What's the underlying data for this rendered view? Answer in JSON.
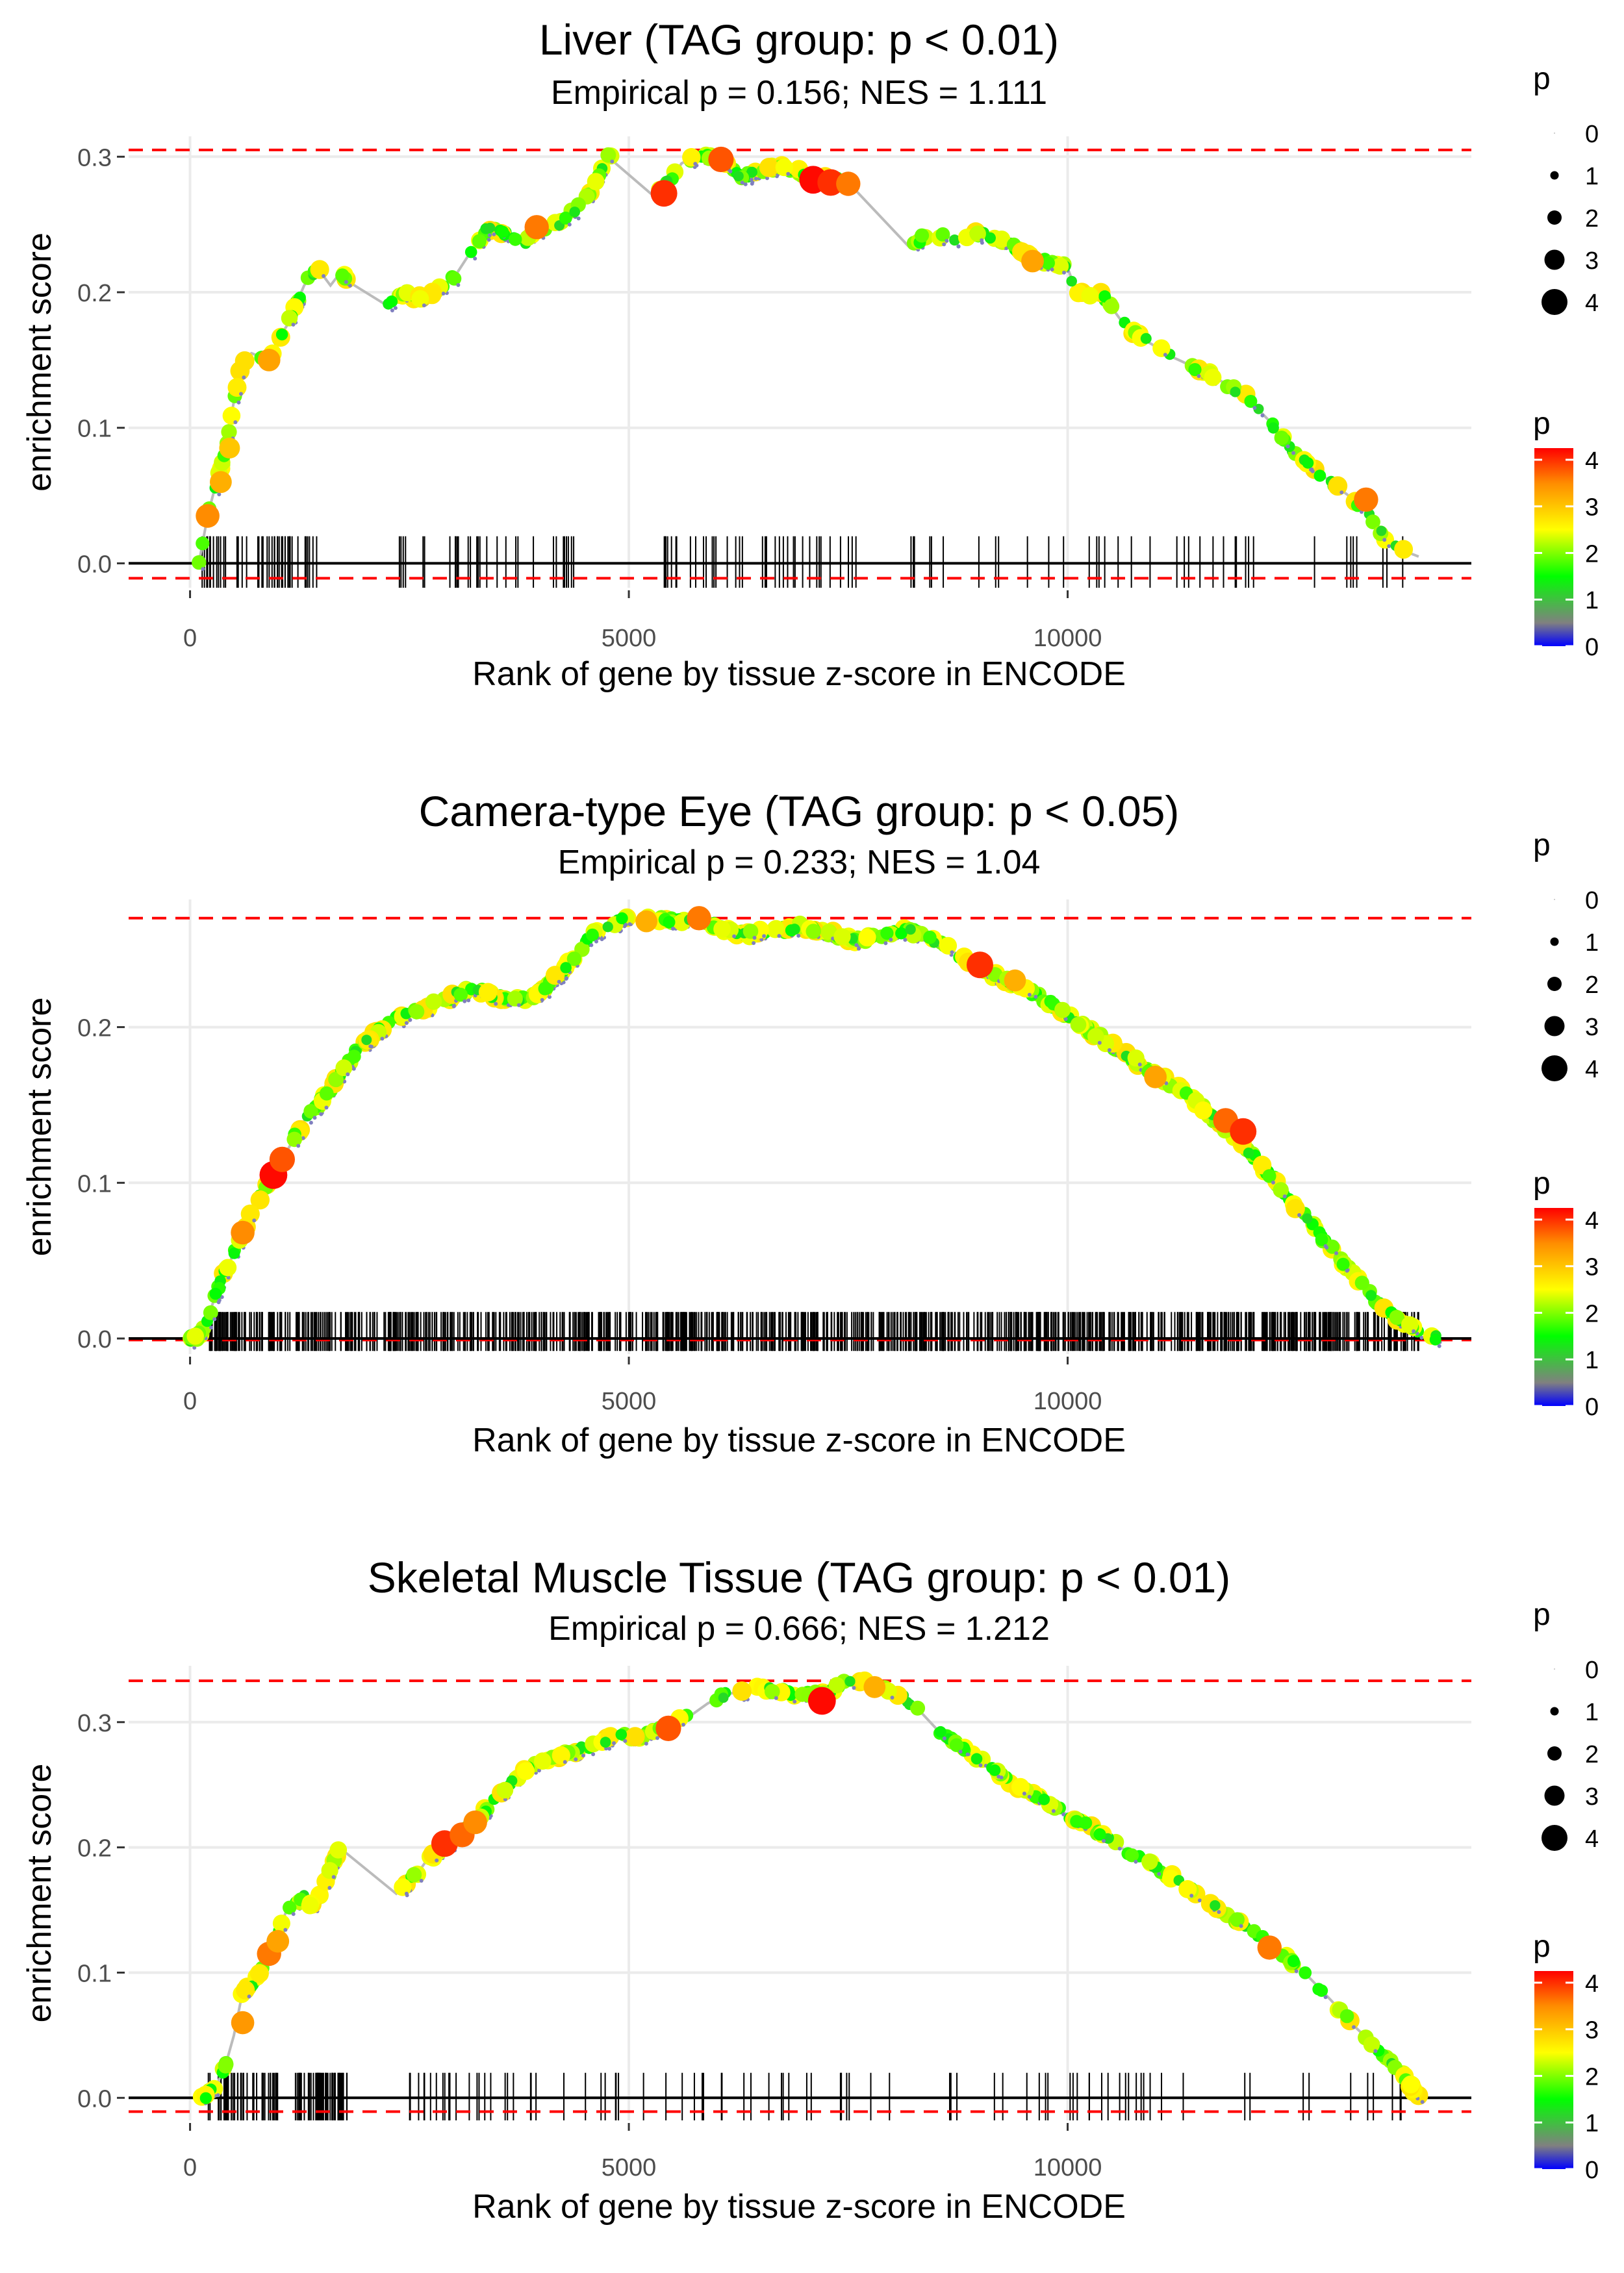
{
  "figure": {
    "legend_size_title": "p",
    "legend_color_title": "p",
    "size_legend_values": [
      "0",
      "1",
      "2",
      "3",
      "4"
    ],
    "color_legend_ticks": [
      "4",
      "3",
      "2",
      "1",
      "0"
    ],
    "colorscale": {
      "domain": [
        0,
        0.5,
        1.5,
        2.5,
        3.5,
        4.25
      ],
      "colors": [
        "#0000ff",
        "#808080",
        "#00ff00",
        "#ffff00",
        "#ff8c00",
        "#ff0000"
      ]
    },
    "colors": {
      "curve": "#bbbbbb",
      "threshold": "#ff0000",
      "zero_line": "#000000",
      "grid": "#ebebeb",
      "rug": "#000000",
      "tick_text": "#4d4d4d"
    }
  },
  "chart_data": [
    {
      "type": "scatter",
      "title": "Liver (TAG group: p < 0.01)",
      "subtitle": "Empirical p = 0.156; NES = 1.111",
      "xlabel": "Rank of gene by tissue z-score in ENCODE",
      "ylabel": "enrichment score",
      "xlim": [
        -700,
        14600
      ],
      "ylim": [
        -0.018,
        0.315
      ],
      "x_ticks": [
        0,
        5000,
        10000
      ],
      "x_tick_labels": [
        "0",
        "5000",
        "10000"
      ],
      "y_ticks": [
        0.0,
        0.1,
        0.2,
        0.3
      ],
      "y_tick_labels": [
        "0.0",
        "0.1",
        "0.2",
        "0.3"
      ],
      "thresholds": [
        0.305,
        -0.011
      ],
      "x_end": 14000,
      "n_rug": 150,
      "rug_top": 0.02,
      "rug_bottom": -0.018,
      "curve": [
        [
          100,
          0
        ],
        [
          200,
          0.035
        ],
        [
          300,
          0.06
        ],
        [
          400,
          0.08
        ],
        [
          500,
          0.12
        ],
        [
          600,
          0.15
        ],
        [
          700,
          0.155
        ],
        [
          900,
          0.15
        ],
        [
          1000,
          0.165
        ],
        [
          1100,
          0.175
        ],
        [
          1200,
          0.19
        ],
        [
          1300,
          0.205
        ],
        [
          1450,
          0.218
        ],
        [
          1600,
          0.205
        ],
        [
          1720,
          0.215
        ],
        [
          1800,
          0.208
        ],
        [
          2250,
          0.19
        ],
        [
          2300,
          0.195
        ],
        [
          2400,
          0.2
        ],
        [
          2600,
          0.196
        ],
        [
          2800,
          0.2
        ],
        [
          3000,
          0.21
        ],
        [
          3200,
          0.23
        ],
        [
          3400,
          0.248
        ],
        [
          3600,
          0.243
        ],
        [
          3800,
          0.235
        ],
        [
          4000,
          0.248
        ],
        [
          4200,
          0.25
        ],
        [
          4400,
          0.262
        ],
        [
          4600,
          0.278
        ],
        [
          4750,
          0.302
        ],
        [
          4850,
          0.295
        ],
        [
          5300,
          0.27
        ],
        [
          5400,
          0.278
        ],
        [
          5500,
          0.285
        ],
        [
          5600,
          0.295
        ],
        [
          5800,
          0.302
        ],
        [
          6000,
          0.3
        ],
        [
          6100,
          0.295
        ],
        [
          6300,
          0.285
        ],
        [
          6500,
          0.29
        ],
        [
          6700,
          0.292
        ],
        [
          6900,
          0.29
        ],
        [
          7100,
          0.285
        ],
        [
          7300,
          0.283
        ],
        [
          7500,
          0.281
        ],
        [
          8200,
          0.233
        ],
        [
          8400,
          0.243
        ],
        [
          8700,
          0.24
        ],
        [
          9000,
          0.243
        ],
        [
          9300,
          0.238
        ],
        [
          9600,
          0.225
        ],
        [
          10000,
          0.218
        ],
        [
          10100,
          0.2
        ],
        [
          10400,
          0.198
        ],
        [
          10600,
          0.18
        ],
        [
          10800,
          0.168
        ],
        [
          11200,
          0.152
        ],
        [
          11600,
          0.14
        ],
        [
          12000,
          0.125
        ],
        [
          12300,
          0.105
        ],
        [
          12600,
          0.08
        ],
        [
          13000,
          0.06
        ],
        [
          13400,
          0.04
        ],
        [
          13600,
          0.02
        ],
        [
          13800,
          0.01
        ],
        [
          14000,
          0.005
        ]
      ],
      "highlights": [
        [
          200,
          0.035,
          3.5
        ],
        [
          350,
          0.06,
          3.2
        ],
        [
          450,
          0.085,
          3
        ],
        [
          900,
          0.15,
          3.3
        ],
        [
          3950,
          0.248,
          3.6
        ],
        [
          5400,
          0.273,
          4.0
        ],
        [
          6050,
          0.298,
          3.8
        ],
        [
          7100,
          0.283,
          4.2
        ],
        [
          7300,
          0.281,
          4.0
        ],
        [
          7500,
          0.28,
          3.6
        ],
        [
          9600,
          0.223,
          3.3
        ],
        [
          13400,
          0.047,
          3.6
        ]
      ]
    },
    {
      "type": "scatter",
      "title": "Camera-type Eye (TAG group: p < 0.05)",
      "subtitle": "Empirical p = 0.233; NES = 1.04",
      "xlabel": "Rank of gene by tissue z-score in ENCODE",
      "ylabel": "enrichment score",
      "xlim": [
        -700,
        14600
      ],
      "ylim": [
        -0.01,
        0.282
      ],
      "x_ticks": [
        0,
        5000,
        10000
      ],
      "x_tick_labels": [
        "0",
        "5000",
        "10000"
      ],
      "y_ticks": [
        0.0,
        0.1,
        0.2
      ],
      "y_tick_labels": [
        "0.0",
        "0.1",
        "0.2"
      ],
      "thresholds": [
        0.27,
        -0.001
      ],
      "x_end": 14000,
      "n_rug": 900,
      "rug_top": 0.017,
      "rug_bottom": -0.008,
      "curve": [
        [
          0,
          0.0
        ],
        [
          100,
          0.002
        ],
        [
          200,
          0.012
        ],
        [
          300,
          0.03
        ],
        [
          500,
          0.055
        ],
        [
          700,
          0.08
        ],
        [
          900,
          0.1
        ],
        [
          1100,
          0.12
        ],
        [
          1300,
          0.14
        ],
        [
          1600,
          0.16
        ],
        [
          1900,
          0.185
        ],
        [
          2200,
          0.2
        ],
        [
          2500,
          0.21
        ],
        [
          2800,
          0.215
        ],
        [
          3000,
          0.22
        ],
        [
          3200,
          0.225
        ],
        [
          3500,
          0.22
        ],
        [
          3800,
          0.218
        ],
        [
          4000,
          0.222
        ],
        [
          4300,
          0.24
        ],
        [
          4600,
          0.26
        ],
        [
          4900,
          0.268
        ],
        [
          5200,
          0.27
        ],
        [
          5500,
          0.268
        ],
        [
          5800,
          0.27
        ],
        [
          6100,
          0.262
        ],
        [
          6400,
          0.26
        ],
        [
          6700,
          0.262
        ],
        [
          7000,
          0.265
        ],
        [
          7300,
          0.26
        ],
        [
          7600,
          0.255
        ],
        [
          7900,
          0.26
        ],
        [
          8200,
          0.262
        ],
        [
          8500,
          0.255
        ],
        [
          8800,
          0.245
        ],
        [
          9100,
          0.235
        ],
        [
          9400,
          0.228
        ],
        [
          9800,
          0.215
        ],
        [
          10200,
          0.2
        ],
        [
          10600,
          0.185
        ],
        [
          11000,
          0.17
        ],
        [
          11400,
          0.155
        ],
        [
          11700,
          0.14
        ],
        [
          12000,
          0.125
        ],
        [
          12300,
          0.105
        ],
        [
          12600,
          0.085
        ],
        [
          12900,
          0.065
        ],
        [
          13200,
          0.045
        ],
        [
          13500,
          0.025
        ],
        [
          13800,
          0.01
        ],
        [
          14000,
          0.004
        ],
        [
          14200,
          0.0
        ]
      ],
      "highlights": [
        [
          950,
          0.105,
          4.2
        ],
        [
          1050,
          0.115,
          3.8
        ],
        [
          600,
          0.068,
          3.5
        ],
        [
          9000,
          0.24,
          4.0
        ],
        [
          9400,
          0.23,
          3.2
        ],
        [
          11000,
          0.168,
          3.3
        ],
        [
          11800,
          0.14,
          3.7
        ],
        [
          12000,
          0.133,
          4.0
        ],
        [
          5800,
          0.27,
          3.6
        ],
        [
          5200,
          0.268,
          3.2
        ]
      ]
    },
    {
      "type": "scatter",
      "title": "Skeletal Muscle Tissue (TAG group: p < 0.01)",
      "subtitle": "Empirical p = 0.666; NES = 1.212",
      "xlabel": "Rank of gene by tissue z-score in ENCODE",
      "ylabel": "enrichment score",
      "xlim": [
        -700,
        14600
      ],
      "ylim": [
        -0.018,
        0.345
      ],
      "x_ticks": [
        0,
        5000,
        10000
      ],
      "x_tick_labels": [
        "0",
        "5000",
        "10000"
      ],
      "y_ticks": [
        0.0,
        0.1,
        0.2,
        0.3
      ],
      "y_tick_labels": [
        "0.0",
        "0.1",
        "0.2",
        "0.3"
      ],
      "thresholds": [
        0.333,
        -0.011
      ],
      "x_end": 14000,
      "n_rug": 180,
      "rug_top": 0.02,
      "rug_bottom": -0.018,
      "curve": [
        [
          100,
          0
        ],
        [
          200,
          0.002
        ],
        [
          300,
          0.01
        ],
        [
          400,
          0.025
        ],
        [
          500,
          0.05
        ],
        [
          600,
          0.085
        ],
        [
          700,
          0.09
        ],
        [
          800,
          0.1
        ],
        [
          900,
          0.115
        ],
        [
          1000,
          0.13
        ],
        [
          1100,
          0.15
        ],
        [
          1200,
          0.155
        ],
        [
          1300,
          0.16
        ],
        [
          1400,
          0.152
        ],
        [
          1500,
          0.165
        ],
        [
          1700,
          0.2
        ],
        [
          2350,
          0.163
        ],
        [
          2450,
          0.17
        ],
        [
          2600,
          0.18
        ],
        [
          2700,
          0.19
        ],
        [
          2900,
          0.2
        ],
        [
          3100,
          0.21
        ],
        [
          3300,
          0.225
        ],
        [
          3500,
          0.24
        ],
        [
          3700,
          0.255
        ],
        [
          3900,
          0.265
        ],
        [
          4100,
          0.272
        ],
        [
          4300,
          0.275
        ],
        [
          4500,
          0.28
        ],
        [
          4700,
          0.285
        ],
        [
          4900,
          0.29
        ],
        [
          5100,
          0.288
        ],
        [
          5300,
          0.295
        ],
        [
          5500,
          0.3
        ],
        [
          5700,
          0.305
        ],
        [
          5900,
          0.315
        ],
        [
          6100,
          0.322
        ],
        [
          6300,
          0.325
        ],
        [
          6500,
          0.327
        ],
        [
          6700,
          0.325
        ],
        [
          6900,
          0.322
        ],
        [
          7100,
          0.322
        ],
        [
          7300,
          0.325
        ],
        [
          7500,
          0.333
        ],
        [
          7700,
          0.332
        ],
        [
          7900,
          0.327
        ],
        [
          8100,
          0.322
        ],
        [
          8300,
          0.31
        ],
        [
          8500,
          0.295
        ],
        [
          8800,
          0.28
        ],
        [
          9100,
          0.265
        ],
        [
          9400,
          0.25
        ],
        [
          9700,
          0.238
        ],
        [
          10000,
          0.226
        ],
        [
          10300,
          0.214
        ],
        [
          10600,
          0.2
        ],
        [
          10900,
          0.188
        ],
        [
          11200,
          0.176
        ],
        [
          11500,
          0.162
        ],
        [
          11800,
          0.148
        ],
        [
          12100,
          0.133
        ],
        [
          12400,
          0.118
        ],
        [
          12700,
          0.1
        ],
        [
          13000,
          0.078
        ],
        [
          13300,
          0.055
        ],
        [
          13600,
          0.035
        ],
        [
          13800,
          0.02
        ],
        [
          14000,
          0.0
        ]
      ],
      "highlights": [
        [
          600,
          0.06,
          3.4
        ],
        [
          900,
          0.115,
          3.6
        ],
        [
          1000,
          0.125,
          3.3
        ],
        [
          2900,
          0.203,
          4.0
        ],
        [
          3100,
          0.21,
          3.7
        ],
        [
          3250,
          0.22,
          3.5
        ],
        [
          5450,
          0.295,
          3.8
        ],
        [
          7200,
          0.317,
          4.2
        ],
        [
          12300,
          0.12,
          3.6
        ],
        [
          7800,
          0.328,
          3.2
        ]
      ]
    }
  ]
}
